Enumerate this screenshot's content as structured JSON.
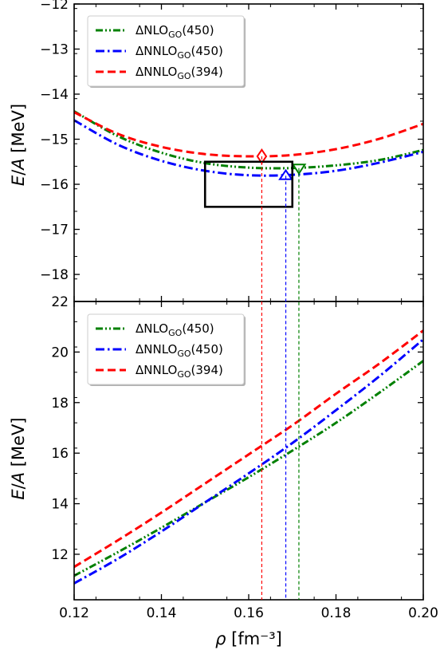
{
  "chart_data": [
    {
      "type": "line",
      "panel": "top",
      "xlabel": "ρ [fm⁻³]",
      "ylabel": "E/A [MeV]",
      "xlim": [
        0.12,
        0.2
      ],
      "ylim": [
        -18.6,
        -12
      ],
      "yticks": [
        -18,
        -17,
        -16,
        -15,
        -14,
        -13,
        -12
      ],
      "legend_position": "top-left",
      "series": [
        {
          "name": "ΔNLO_GO(450)",
          "color": "#008000",
          "dash": "dash-dot-dot",
          "x": [
            0.12,
            0.13,
            0.14,
            0.15,
            0.16,
            0.17,
            0.18,
            0.19,
            0.2
          ],
          "y": [
            -14.38,
            -14.93,
            -15.3,
            -15.53,
            -15.63,
            -15.64,
            -15.58,
            -15.46,
            -15.24
          ],
          "saturation_point": {
            "x": 0.1715,
            "y": -15.64,
            "marker": "triangle-down"
          }
        },
        {
          "name": "ΔNNLO_GO(450)",
          "color": "#0000ff",
          "dash": "dash-dot",
          "x": [
            0.12,
            0.13,
            0.14,
            0.15,
            0.16,
            0.17,
            0.18,
            0.19,
            0.2
          ],
          "y": [
            -14.58,
            -15.12,
            -15.48,
            -15.7,
            -15.8,
            -15.79,
            -15.7,
            -15.52,
            -15.28
          ],
          "saturation_point": {
            "x": 0.1685,
            "y": -15.81,
            "marker": "triangle-up"
          }
        },
        {
          "name": "ΔNNLO_GO(394)",
          "color": "#ff0000",
          "dash": "dashed",
          "x": [
            0.12,
            0.13,
            0.14,
            0.15,
            0.16,
            0.17,
            0.18,
            0.19,
            0.2
          ],
          "y": [
            -14.4,
            -14.88,
            -15.17,
            -15.33,
            -15.38,
            -15.35,
            -15.22,
            -14.99,
            -14.66
          ],
          "saturation_point": {
            "x": 0.163,
            "y": -15.38,
            "marker": "diamond"
          }
        }
      ],
      "empirical_box": {
        "x": [
          0.15,
          0.17
        ],
        "y": [
          -16.5,
          -15.5
        ]
      }
    },
    {
      "type": "line",
      "panel": "bottom",
      "xlabel": "ρ [fm⁻³]",
      "ylabel": "E/A [MeV]",
      "xlim": [
        0.12,
        0.2
      ],
      "ylim": [
        10.2,
        22
      ],
      "xticks": [
        0.12,
        0.14,
        0.16,
        0.18,
        0.2
      ],
      "xtick_labels": [
        "0.12",
        "0.14",
        "0.16",
        "0.18",
        "0.20"
      ],
      "yticks": [
        12,
        14,
        16,
        18,
        20,
        22
      ],
      "legend_position": "top-left",
      "series": [
        {
          "name": "ΔNLO_GO(450)",
          "color": "#008000",
          "dash": "dash-dot-dot",
          "x": [
            0.12,
            0.13,
            0.14,
            0.15,
            0.16,
            0.17,
            0.18,
            0.19,
            0.2
          ],
          "y": [
            11.15,
            12.08,
            13.05,
            14.05,
            15.05,
            16.1,
            17.2,
            18.4,
            19.65
          ]
        },
        {
          "name": "ΔNNLO_GO(450)",
          "color": "#0000ff",
          "dash": "dash-dot",
          "x": [
            0.12,
            0.13,
            0.14,
            0.15,
            0.16,
            0.17,
            0.18,
            0.19,
            0.2
          ],
          "y": [
            10.85,
            11.82,
            12.9,
            14.05,
            15.2,
            16.4,
            17.7,
            19.05,
            20.5
          ]
        },
        {
          "name": "ΔNNLO_GO(394)",
          "color": "#ff0000",
          "dash": "dashed",
          "x": [
            0.12,
            0.13,
            0.14,
            0.15,
            0.16,
            0.17,
            0.18,
            0.19,
            0.2
          ],
          "y": [
            11.5,
            12.55,
            13.65,
            14.8,
            15.95,
            17.1,
            18.35,
            19.55,
            20.85
          ]
        }
      ]
    }
  ],
  "saturation_lines_x": [
    {
      "color": "#008000",
      "x": 0.1715
    },
    {
      "color": "#0000ff",
      "x": 0.1685
    },
    {
      "color": "#ff0000",
      "x": 0.163
    }
  ]
}
